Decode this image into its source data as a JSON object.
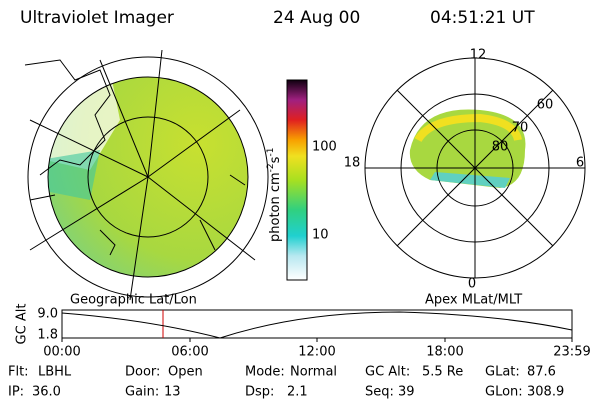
{
  "header": {
    "title": "Ultraviolet Imager",
    "date": "24 Aug 00",
    "time": "04:51:21 UT"
  },
  "colorbar": {
    "label": "photon cm",
    "label_sup1": "-2",
    "label_mid": "s",
    "label_sup2": "-1",
    "ticks": [
      "100",
      "10"
    ]
  },
  "left_panel": {
    "caption": "Geographic Lat/Lon"
  },
  "right_panel": {
    "caption": "Apex MLat/MLT",
    "mlt_labels": [
      "12",
      "18",
      "6",
      "0"
    ],
    "lat_labels": [
      "60",
      "70",
      "80"
    ]
  },
  "altitude_plot": {
    "ylabel": "GC Alt",
    "yticks": [
      "9.0",
      "1.8"
    ],
    "xticks": [
      "00:00",
      "06:00",
      "12:00",
      "18:00",
      "23:59"
    ]
  },
  "footer": {
    "rows": [
      [
        {
          "label": "Flt:",
          "value": "LBHL"
        },
        {
          "label": "Door:",
          "value": "Open"
        },
        {
          "label": "Mode:",
          "value": "Normal"
        },
        {
          "label": "GC Alt:",
          "value": "5.5 Re"
        },
        {
          "label": "GLat:",
          "value": "87.6"
        }
      ],
      [
        {
          "label": "IP:",
          "value": "36.0"
        },
        {
          "label": "Gain:",
          "value": "13"
        },
        {
          "label": "Dsp:",
          "value": "2.1"
        },
        {
          "label": "Seq:",
          "value": "39"
        },
        {
          "label": "GLon:",
          "value": "308.9"
        }
      ]
    ]
  }
}
